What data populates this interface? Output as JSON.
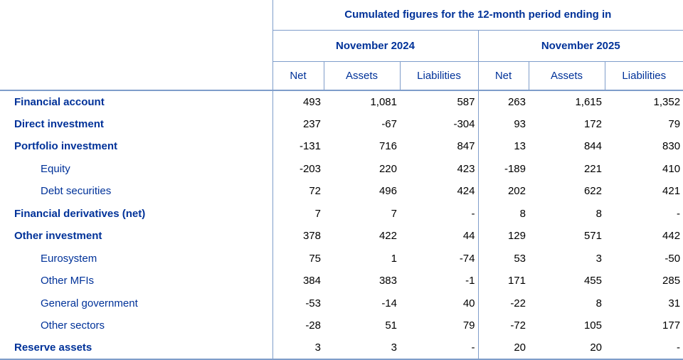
{
  "table": {
    "title": "Cumulated figures for the 12-month period ending in",
    "groups": [
      "November 2024",
      "November 2025"
    ],
    "sub_columns": [
      "Net",
      "Assets",
      "Liabilities"
    ],
    "colors": {
      "text_blue": "#003299",
      "number_black": "#000000",
      "grid_line": "#7f9dca",
      "background": "#ffffff"
    },
    "rows": [
      {
        "label": "Financial account",
        "style": "bold",
        "values": [
          "493",
          "1,081",
          "587",
          "263",
          "1,615",
          "1,352"
        ]
      },
      {
        "label": "Direct investment",
        "style": "bold",
        "values": [
          "237",
          "-67",
          "-304",
          "93",
          "172",
          "79"
        ]
      },
      {
        "label": "Portfolio investment",
        "style": "bold",
        "values": [
          "-131",
          "716",
          "847",
          "13",
          "844",
          "830"
        ]
      },
      {
        "label": "Equity",
        "style": "indent",
        "values": [
          "-203",
          "220",
          "423",
          "-189",
          "221",
          "410"
        ]
      },
      {
        "label": "Debt securities",
        "style": "indent",
        "values": [
          "72",
          "496",
          "424",
          "202",
          "622",
          "421"
        ]
      },
      {
        "label": "Financial derivatives (net)",
        "style": "bold",
        "values": [
          "7",
          "7",
          "-",
          "8",
          "8",
          "-"
        ]
      },
      {
        "label": "Other investment",
        "style": "bold",
        "values": [
          "378",
          "422",
          "44",
          "129",
          "571",
          "442"
        ]
      },
      {
        "label": "Eurosystem",
        "style": "indent",
        "values": [
          "75",
          "1",
          "-74",
          "53",
          "3",
          "-50"
        ]
      },
      {
        "label": "Other MFIs",
        "style": "indent",
        "values": [
          "384",
          "383",
          "-1",
          "171",
          "455",
          "285"
        ]
      },
      {
        "label": "General government",
        "style": "indent",
        "values": [
          "-53",
          "-14",
          "40",
          "-22",
          "8",
          "31"
        ]
      },
      {
        "label": "Other sectors",
        "style": "indent",
        "values": [
          "-28",
          "51",
          "79",
          "-72",
          "105",
          "177"
        ]
      },
      {
        "label": "Reserve assets",
        "style": "bold",
        "values": [
          "3",
          "3",
          "-",
          "20",
          "20",
          "-"
        ]
      }
    ]
  }
}
